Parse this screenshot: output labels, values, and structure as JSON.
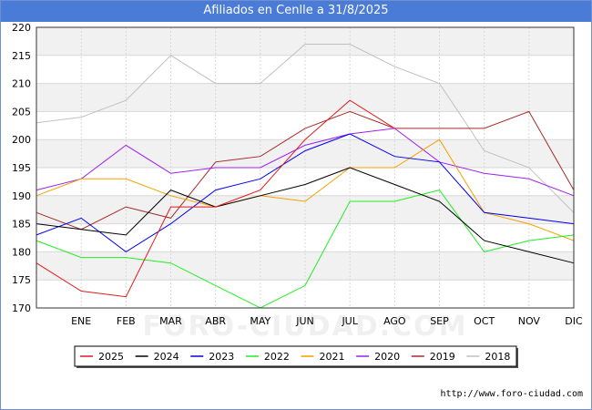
{
  "title": "Afiliados en Cenlle a 31/8/2025",
  "watermark": "FORO-CIUDAD.COM",
  "footer": "http://www.foro-ciudad.com",
  "chart_data": {
    "type": "line",
    "title": "Afiliados en Cenlle a 31/8/2025",
    "categories": [
      "",
      "ENE",
      "FEB",
      "MAR",
      "ABR",
      "MAY",
      "JUN",
      "JUL",
      "AGO",
      "SEP",
      "OCT",
      "NOV",
      "DIC"
    ],
    "ylim": [
      170,
      220
    ],
    "yticks": [
      170,
      175,
      180,
      185,
      190,
      195,
      200,
      205,
      210,
      215,
      220
    ],
    "grid": true,
    "legend_position": "bottom",
    "series": [
      {
        "name": "2025",
        "color": "#e31a1c",
        "values": [
          178,
          173,
          172,
          188,
          188,
          191,
          200,
          207,
          202,
          null,
          null,
          null,
          null
        ]
      },
      {
        "name": "2024",
        "color": "#000000",
        "values": [
          185,
          184,
          183,
          191,
          188,
          190,
          192,
          195,
          192,
          189,
          182,
          180,
          178
        ]
      },
      {
        "name": "2023",
        "color": "#0000ee",
        "values": [
          183,
          186,
          180,
          185,
          191,
          193,
          198,
          201,
          197,
          196,
          187,
          186,
          185
        ]
      },
      {
        "name": "2022",
        "color": "#22ee22",
        "values": [
          182,
          179,
          179,
          178,
          174,
          170,
          174,
          189,
          189,
          191,
          180,
          182,
          183
        ]
      },
      {
        "name": "2021",
        "color": "#f5a000",
        "values": [
          190,
          193,
          193,
          190,
          188,
          190,
          189,
          195,
          195,
          200,
          187,
          185,
          182
        ]
      },
      {
        "name": "2020",
        "color": "#a020f0",
        "values": [
          191,
          193,
          199,
          194,
          195,
          195,
          199,
          201,
          202,
          196,
          194,
          193,
          190
        ]
      },
      {
        "name": "2019",
        "color": "#a52a2a",
        "values": [
          187,
          184,
          188,
          186,
          196,
          197,
          202,
          205,
          202,
          202,
          202,
          205,
          191
        ]
      },
      {
        "name": "2018",
        "color": "#c0c0c0",
        "values": [
          203,
          204,
          207,
          215,
          210,
          210,
          217,
          217,
          213,
          210,
          198,
          195,
          187
        ]
      }
    ]
  }
}
